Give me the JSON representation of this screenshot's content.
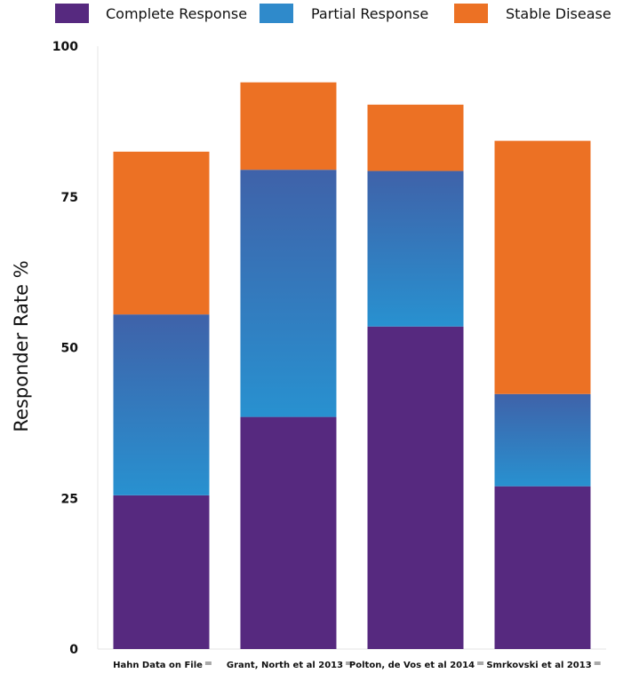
{
  "chart_data": {
    "type": "bar",
    "stacked": true,
    "title": "",
    "xlabel": "",
    "ylabel": "Responder Rate %",
    "ylim": [
      0,
      100
    ],
    "yticks": [
      0,
      25,
      50,
      75,
      100
    ],
    "grid": false,
    "legend_position": "top",
    "categories": [
      "Hahn Data on File",
      "Grant, North et al 2013",
      "Polton, de Vos et al 2014",
      "Smrkovski et al 2013"
    ],
    "series": [
      {
        "name": "Complete Response",
        "color": "#56297f",
        "values": [
          25.5,
          38.5,
          53.5,
          27.0
        ]
      },
      {
        "name": "Partial Response",
        "color": "#2f8acb",
        "values": [
          30.0,
          41.0,
          25.8,
          15.3
        ]
      },
      {
        "name": "Stable Disease",
        "color": "#ec7124",
        "values": [
          27.0,
          14.5,
          11.0,
          42.0
        ]
      }
    ],
    "category_marker_color": "#a8a8a8"
  }
}
